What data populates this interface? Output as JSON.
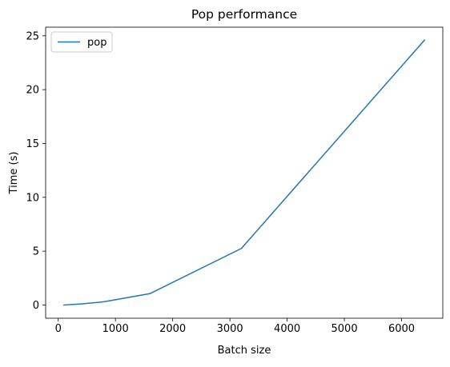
{
  "chart_data": {
    "type": "line",
    "title": "Pop performance",
    "xlabel": "Batch size",
    "ylabel": "Time (s)",
    "xlim": [
      -220,
      6720
    ],
    "ylim": [
      -1.23,
      25.8
    ],
    "xticks": [
      1000,
      2000,
      3000,
      4000,
      5000,
      6000
    ],
    "xtick_labels": [
      "1000",
      "2000",
      "3000",
      "4000",
      "5000",
      "6000"
    ],
    "xminor_ticks": [
      0
    ],
    "xminor_tick_labels": [
      "0"
    ],
    "yticks": [
      0,
      5,
      10,
      15,
      20,
      25
    ],
    "ytick_labels": [
      "0",
      "5",
      "10",
      "15",
      "20",
      "25"
    ],
    "grid": false,
    "legend_position": "upper-left",
    "series": [
      {
        "name": "pop",
        "color": "#1f77b4",
        "x": [
          100,
          400,
          800,
          1600,
          3200,
          6400
        ],
        "y": [
          0.0,
          0.1,
          0.3,
          1.05,
          5.25,
          24.6
        ]
      }
    ]
  }
}
